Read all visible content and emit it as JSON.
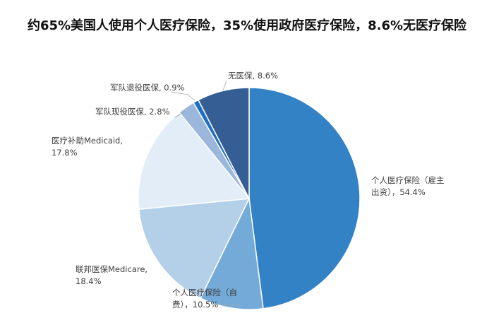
{
  "chart_data": {
    "type": "pie",
    "title": "约65%美国人使用个人医疗保险，35%使用政府医疗保险，8.6%无医疗保险",
    "slices": [
      {
        "lines": [
          "个人医疗保险（雇主",
          "出资），54.4%"
        ],
        "label": "个人医疗保险（雇主出资），54.4%",
        "value": 54.4,
        "color": "#3482c6"
      },
      {
        "lines": [
          "个人医疗保险（自",
          "费），10.5%"
        ],
        "label": "个人医疗保险（自费），10.5%",
        "value": 10.5,
        "color": "#73aad8"
      },
      {
        "lines": [
          "联邦医保Medicare,",
          "18.4%"
        ],
        "label": "联邦医保Medicare, 18.4%",
        "value": 18.4,
        "color": "#b4d0e8"
      },
      {
        "lines": [
          "医疗补助Medicaid,",
          "17.8%"
        ],
        "label": "医疗补助Medicaid, 17.8%",
        "value": 17.8,
        "color": "#e2edf8"
      },
      {
        "lines": [
          "军队现役医保, 2.8%"
        ],
        "label": "军队现役医保, 2.8%",
        "value": 2.8,
        "color": "#9bb7dc"
      },
      {
        "lines": [
          "军队退役医保, 0.9%"
        ],
        "label": "军队退役医保, 0.9%",
        "value": 0.9,
        "color": "#1f6fc0"
      },
      {
        "lines": [
          "无医保, 8.6%"
        ],
        "label": "无医保, 8.6%",
        "value": 8.6,
        "color": "#355e95"
      }
    ]
  }
}
